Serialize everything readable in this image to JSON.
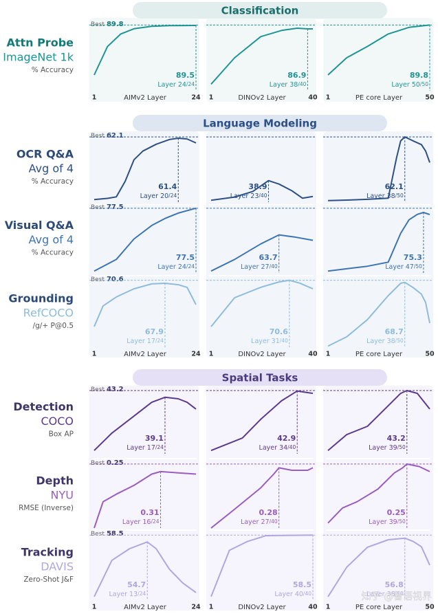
{
  "sections": [
    {
      "title": "Classification"
    },
    {
      "title": "Language Modeling"
    },
    {
      "title": "Spatial Tasks"
    }
  ],
  "rows": [
    {
      "task": "Attn Probe",
      "dataset": "ImageNet 1k",
      "metric": "% Accuracy",
      "best_label": "Best",
      "best": 89.8
    },
    {
      "task": "OCR Q&A",
      "dataset": "Avg of 4",
      "metric": "% Accuracy",
      "best_label": "Best",
      "best": 62.1
    },
    {
      "task": "Visual Q&A",
      "dataset": "Avg of 4",
      "metric": "% Accuracy",
      "best_label": "Best",
      "best": 77.5
    },
    {
      "task": "Grounding",
      "dataset": "RefCOCO",
      "metric": "/g/+ P@0.5",
      "best_label": "Best",
      "best": 70.6
    },
    {
      "task": "Detection",
      "dataset": "COCO",
      "metric": "Box AP",
      "best_label": "Best",
      "best": 43.2
    },
    {
      "task": "Depth",
      "dataset": "NYU",
      "metric": "RMSE (Inverse)",
      "best_label": "Best",
      "best": 0.25
    },
    {
      "task": "Tracking",
      "dataset": "DAVIS",
      "metric": "Zero-Shot J&F",
      "best_label": "Best",
      "best": 58.5
    }
  ],
  "chart_data": [
    {
      "type": "line",
      "color": "#1f9494",
      "xlim": [
        1,
        24
      ],
      "ylim": [
        40,
        90
      ],
      "x": [
        1,
        4,
        7,
        10,
        14,
        18,
        24
      ],
      "values": [
        52,
        73.5,
        83,
        87,
        88.8,
        89.3,
        89.5
      ],
      "annotation": {
        "value": 89.5,
        "x": 24,
        "layer": "Layer 24",
        "total": "/24"
      },
      "xticks": [
        1,
        24
      ],
      "xlabel": "AIMv2 Layer"
    },
    {
      "type": "line",
      "color": "#1f9494",
      "xlim": [
        1,
        40
      ],
      "ylim": [
        40,
        90
      ],
      "x": [
        1,
        10,
        20,
        28,
        34,
        38,
        40
      ],
      "values": [
        45,
        65,
        81,
        85.7,
        87.4,
        86.9,
        86.9
      ],
      "annotation": {
        "value": 86.9,
        "x": 38,
        "layer": "Layer 38",
        "total": "/40"
      },
      "xticks": [
        1,
        40
      ],
      "xlabel": "DINOv2 Layer"
    },
    {
      "type": "line",
      "color": "#1f9494",
      "xlim": [
        1,
        50
      ],
      "ylim": [
        40,
        90
      ],
      "x": [
        1,
        10,
        20,
        30,
        40,
        50
      ],
      "values": [
        52,
        65,
        73.6,
        83,
        88,
        89.8
      ],
      "annotation": {
        "value": 89.8,
        "x": 50,
        "layer": "Layer 50",
        "total": "/50"
      },
      "xticks": [
        1,
        50
      ],
      "xlabel": "PE core Layer"
    },
    {
      "type": "line",
      "color": "#2c4f86",
      "xlim": [
        1,
        24
      ],
      "ylim": [
        27.5,
        62.5
      ],
      "x": [
        1,
        4,
        6,
        8,
        10,
        12,
        15,
        18,
        20,
        22,
        24
      ],
      "values": [
        28.9,
        29.5,
        30.3,
        38.5,
        50,
        54.6,
        58.2,
        60.7,
        61.4,
        61,
        58.9
      ],
      "annotation": {
        "value": 61.4,
        "x": 20,
        "layer": "Layer 20",
        "total": "/24"
      }
    },
    {
      "type": "line",
      "color": "#2c4f86",
      "xlim": [
        1,
        40
      ],
      "ylim": [
        27.5,
        62.5
      ],
      "x": [
        1,
        10,
        17,
        23,
        27,
        32,
        36,
        40
      ],
      "values": [
        28.5,
        30.2,
        33.2,
        38.9,
        37.1,
        33.5,
        29.6,
        30.5
      ],
      "annotation": {
        "value": 38.9,
        "x": 23,
        "layer": "Layer 23",
        "total": "/40"
      }
    },
    {
      "type": "line",
      "color": "#2c4f86",
      "xlim": [
        1,
        50
      ],
      "ylim": [
        27.5,
        62.5
      ],
      "x": [
        1,
        10,
        20,
        30,
        34,
        36,
        38,
        42,
        46,
        48,
        50
      ],
      "values": [
        28.3,
        28.6,
        29,
        29.6,
        51,
        60,
        62.1,
        60,
        58,
        54.6,
        48.5
      ],
      "annotation": {
        "value": 62.1,
        "x": 38,
        "layer": "Layer 38",
        "total": "/50"
      }
    },
    {
      "type": "line",
      "color": "#3c74b4",
      "xlim": [
        1,
        24
      ],
      "ylim": [
        44,
        77.8
      ],
      "x": [
        1,
        6,
        10,
        14,
        17,
        20,
        24
      ],
      "values": [
        45,
        51,
        61.6,
        68.6,
        72.2,
        75,
        77.5
      ],
      "annotation": {
        "value": 77.5,
        "x": 24,
        "layer": "Layer 24",
        "total": "/24"
      }
    },
    {
      "type": "line",
      "color": "#3c74b4",
      "xlim": [
        1,
        40
      ],
      "ylim": [
        44,
        77.8
      ],
      "x": [
        1,
        10,
        20,
        27,
        33,
        40
      ],
      "values": [
        45,
        51,
        59,
        63.7,
        62.6,
        60.9
      ],
      "annotation": {
        "value": 63.7,
        "x": 27,
        "layer": "Layer 27",
        "total": "/40"
      }
    },
    {
      "type": "line",
      "color": "#3c74b4",
      "xlim": [
        1,
        50
      ],
      "ylim": [
        44,
        77.8
      ],
      "x": [
        1,
        20,
        30,
        36,
        40,
        44,
        47,
        50
      ],
      "values": [
        45,
        47.5,
        49.6,
        64.5,
        71.5,
        74.3,
        75.3,
        74.2
      ],
      "annotation": {
        "value": 75.3,
        "x": 47,
        "layer": "Layer 47",
        "total": "/50"
      }
    },
    {
      "type": "line",
      "color": "#8ebcdc",
      "xlim": [
        1,
        24
      ],
      "ylim": [
        10,
        71
      ],
      "x": [
        1,
        3,
        6,
        10,
        14,
        17,
        20,
        22,
        24
      ],
      "values": [
        28.7,
        47.4,
        55.5,
        62.9,
        67.3,
        67.9,
        66.6,
        64.2,
        48.6
      ],
      "annotation": {
        "value": 67.9,
        "x": 17,
        "layer": "Layer 17",
        "total": "/24"
      },
      "xticks": [
        1,
        24
      ],
      "xlabel": "AIMv2 Layer"
    },
    {
      "type": "line",
      "color": "#8ebcdc",
      "xlim": [
        1,
        40
      ],
      "ylim": [
        10,
        71
      ],
      "x": [
        1,
        10,
        20,
        27,
        31,
        35,
        40
      ],
      "values": [
        28.7,
        54.8,
        64.2,
        69.1,
        70.6,
        68,
        62.9
      ],
      "annotation": {
        "value": 70.6,
        "x": 31,
        "layer": "Layer 31",
        "total": "/40"
      },
      "xticks": [
        1,
        40
      ],
      "xlabel": "DINOv2 Layer"
    },
    {
      "type": "line",
      "color": "#8ebcdc",
      "xlim": [
        1,
        50
      ],
      "ylim": [
        10,
        71
      ],
      "x": [
        1,
        10,
        20,
        30,
        36,
        38,
        42,
        46,
        48,
        50
      ],
      "values": [
        11,
        19.4,
        35,
        56.7,
        67.9,
        68.7,
        64,
        58,
        50.5,
        31.8
      ],
      "annotation": {
        "value": 68.7,
        "x": 38,
        "layer": "Layer 38",
        "total": "/50"
      },
      "xticks": [
        1,
        50
      ],
      "xlabel": "PE core Layer"
    },
    {
      "type": "line",
      "color": "#5b3a8e",
      "xlim": [
        1,
        24
      ],
      "ylim": [
        5,
        43.6
      ],
      "x": [
        1,
        5,
        10,
        14,
        17,
        20,
        22,
        24
      ],
      "values": [
        7,
        17.5,
        27.8,
        36.1,
        39.1,
        38.2,
        36.1,
        32
      ],
      "annotation": {
        "value": 39.1,
        "x": 17,
        "layer": "Layer 17",
        "total": "/24"
      }
    },
    {
      "type": "line",
      "color": "#5b3a8e",
      "xlim": [
        1,
        40
      ],
      "ylim": [
        5,
        43.6
      ],
      "x": [
        1,
        13,
        20,
        28,
        34,
        40
      ],
      "values": [
        7,
        14.5,
        25.8,
        37,
        42.9,
        41.5
      ],
      "annotation": {
        "value": 42.9,
        "x": 34,
        "layer": "Layer 34",
        "total": "/40"
      }
    },
    {
      "type": "line",
      "color": "#5b3a8e",
      "xlim": [
        1,
        50
      ],
      "ylim": [
        5,
        43.6
      ],
      "x": [
        1,
        10,
        20,
        30,
        36,
        39,
        44,
        50
      ],
      "values": [
        7,
        16.6,
        21.6,
        34,
        41.5,
        43.2,
        41.5,
        32
      ],
      "annotation": {
        "value": 43.2,
        "x": 39,
        "layer": "Layer 39",
        "total": "/50"
      }
    },
    {
      "type": "line",
      "color": "#9a5cc0",
      "xlim": [
        1,
        24
      ],
      "ylim": [
        0.76,
        0.245
      ],
      "x": [
        1,
        3,
        6,
        10,
        14,
        16,
        20,
        24
      ],
      "values": [
        0.76,
        0.55,
        0.49,
        0.42,
        0.33,
        0.31,
        0.32,
        0.33
      ],
      "annotation": {
        "value": 0.31,
        "x": 16,
        "layer": "Layer 16",
        "total": "/24"
      }
    },
    {
      "type": "line",
      "color": "#9a5cc0",
      "xlim": [
        1,
        40
      ],
      "ylim": [
        0.76,
        0.245
      ],
      "x": [
        1,
        10,
        20,
        25,
        27,
        32,
        38,
        40
      ],
      "values": [
        0.76,
        0.61,
        0.44,
        0.33,
        0.28,
        0.3,
        0.3,
        0.28
      ],
      "annotation": {
        "value": 0.28,
        "x": 27,
        "layer": "Layer 27",
        "total": "/40"
      }
    },
    {
      "type": "line",
      "color": "#9a5cc0",
      "xlim": [
        1,
        50
      ],
      "ylim": [
        0.76,
        0.245
      ],
      "x": [
        1,
        8,
        15,
        25,
        33,
        37,
        39,
        45,
        50
      ],
      "values": [
        0.72,
        0.6,
        0.55,
        0.45,
        0.32,
        0.28,
        0.25,
        0.27,
        0.31
      ],
      "annotation": {
        "value": 0.25,
        "x": 39,
        "layer": "Layer 39",
        "total": "/50"
      }
    },
    {
      "type": "line",
      "color": "#b1a6e0",
      "xlim": [
        1,
        24
      ],
      "ylim": [
        22,
        59
      ],
      "x": [
        1,
        5,
        9,
        13,
        15,
        18,
        21,
        24
      ],
      "values": [
        24,
        44.4,
        50.9,
        54.7,
        50.9,
        39.4,
        31.7,
        26.3
      ],
      "annotation": {
        "value": 54.7,
        "x": 13,
        "layer": "Layer 13",
        "total": "/24"
      },
      "xticks": [
        1,
        24
      ],
      "xlabel": "AIMv2 Layer"
    },
    {
      "type": "line",
      "color": "#b1a6e0",
      "xlim": [
        1,
        40
      ],
      "ylim": [
        22,
        59
      ],
      "x": [
        1,
        8,
        15,
        22,
        30,
        40
      ],
      "values": [
        24,
        50,
        55,
        58.2,
        58.4,
        58.5
      ],
      "annotation": {
        "value": 58.5,
        "x": 40,
        "layer": "Layer 40",
        "total": "/40"
      },
      "xticks": [
        1,
        40
      ],
      "xlabel": "DINOv2 Layer"
    },
    {
      "type": "line",
      "color": "#b1a6e0",
      "xlim": [
        1,
        50
      ],
      "ylim": [
        22,
        59
      ],
      "x": [
        1,
        10,
        20,
        30,
        38,
        42,
        46,
        50
      ],
      "values": [
        24,
        40.5,
        51.7,
        55.9,
        56.8,
        55,
        52,
        41.7
      ],
      "annotation": {
        "value": 56.8,
        "x": 38,
        "layer": "Layer 38",
        "total": "/50"
      },
      "xticks": [
        1,
        50
      ],
      "xlabel": "PE core Layer"
    }
  ],
  "watermark": "知乎 @智语视界"
}
